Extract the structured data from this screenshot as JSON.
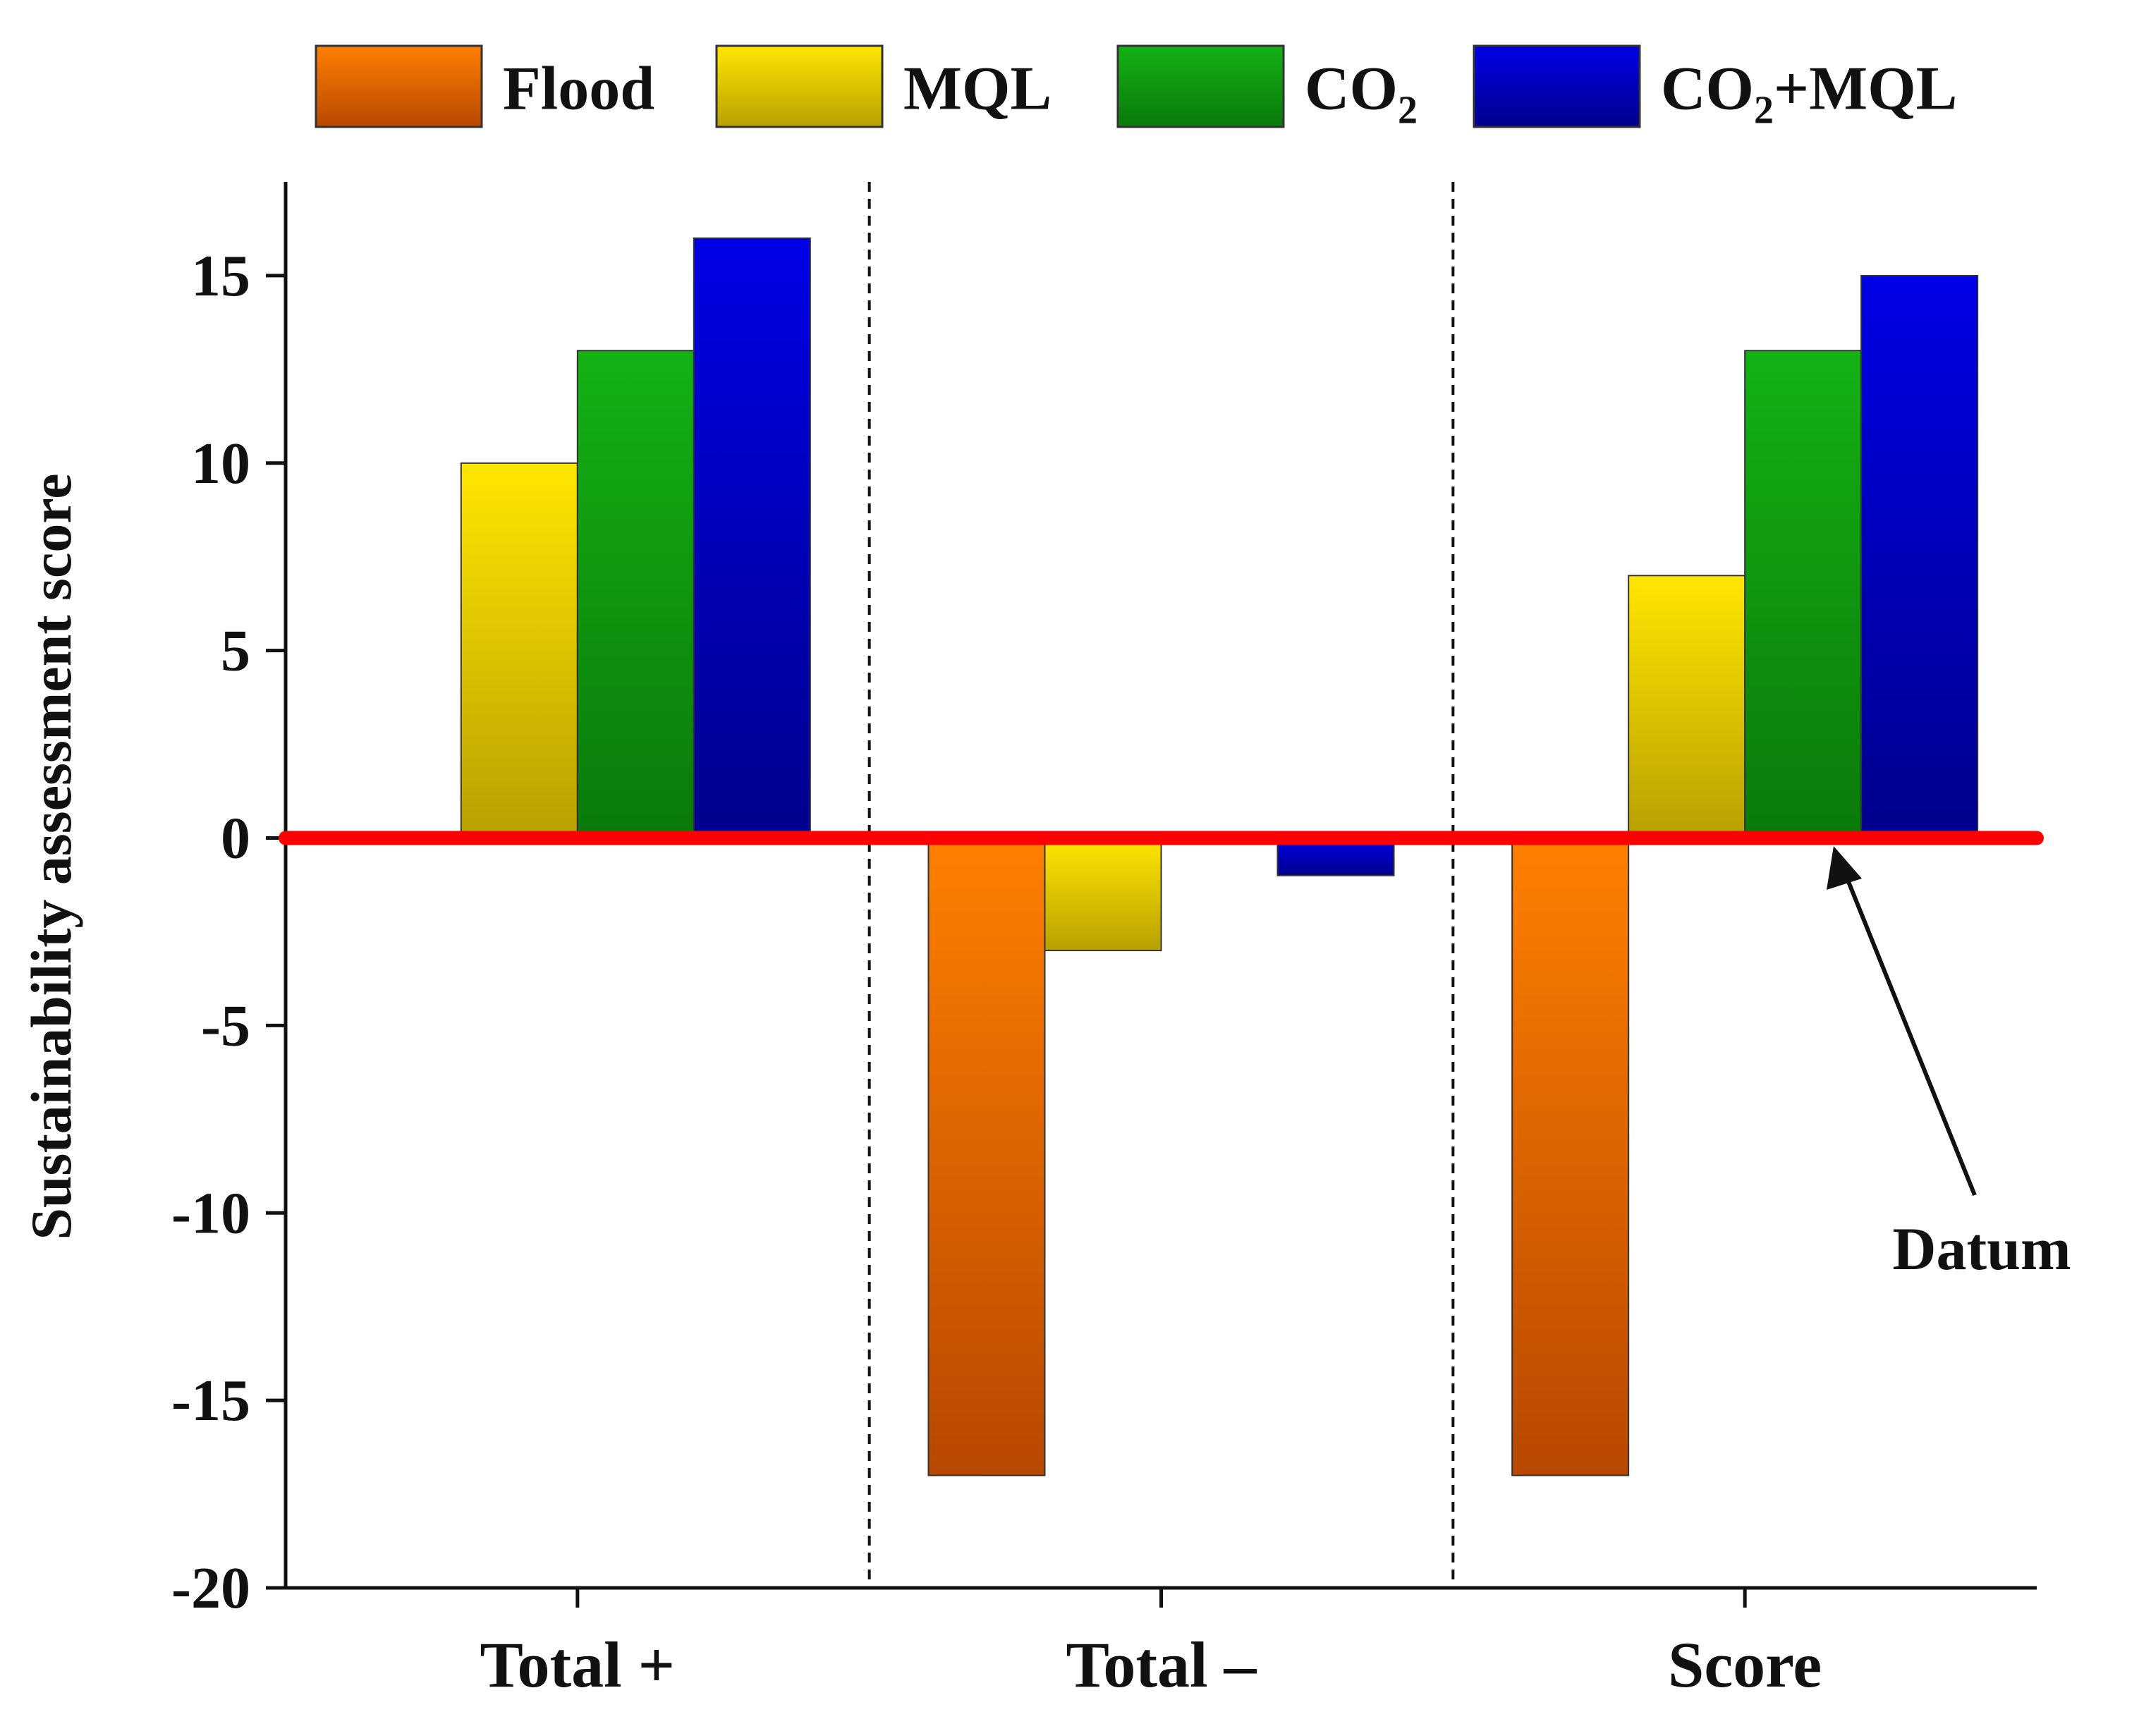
{
  "chart_data": {
    "type": "bar",
    "title": "",
    "xlabel": "",
    "ylabel": "Sustainability assessment score",
    "ylim": [
      -20,
      17.5
    ],
    "yticks": [
      15,
      10,
      5,
      0,
      -5,
      -10,
      -15,
      -20
    ],
    "ytick_labels": [
      "15",
      "10",
      "5",
      "0",
      "-5",
      "-10",
      "-15",
      "-20"
    ],
    "categories": [
      "Total +",
      "Total –",
      "Score"
    ],
    "series": [
      {
        "name": "Flood",
        "label_main": "Flood",
        "label_sub": "",
        "label_tail": "",
        "values": [
          0,
          -17,
          -17
        ],
        "color": "#ff7f00",
        "color_dark": "#b84800"
      },
      {
        "name": "MQL",
        "label_main": "MQL",
        "label_sub": "",
        "label_tail": "",
        "values": [
          10,
          -3,
          7
        ],
        "color": "#ffe600",
        "color_dark": "#b8a000"
      },
      {
        "name": "CO2",
        "label_main": "CO",
        "label_sub": "2",
        "label_tail": "",
        "values": [
          13,
          0,
          13
        ],
        "color": "#14b214",
        "color_dark": "#0a7a0a"
      },
      {
        "name": "CO2+MQL",
        "label_main": "CO",
        "label_sub": "2",
        "label_tail": "+MQL",
        "values": [
          16,
          -1,
          15
        ],
        "color": "#0000e6",
        "color_dark": "#00008c"
      }
    ],
    "datum": {
      "value": 0,
      "color": "#ff0000",
      "label": "Datum"
    },
    "legend_position": "top",
    "grid": false,
    "category_separators": "dashed"
  }
}
